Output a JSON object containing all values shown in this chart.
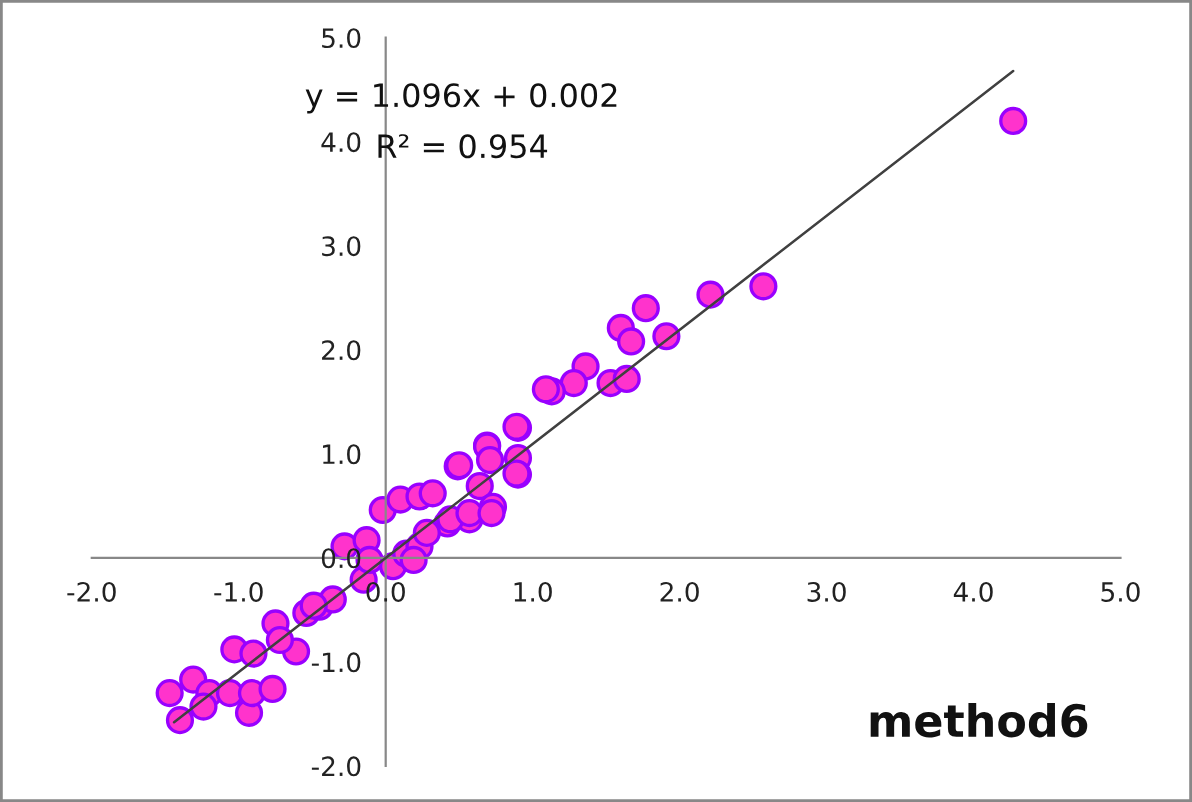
{
  "chart_data": {
    "type": "scatter",
    "xlim": [
      -2,
      5
    ],
    "ylim": [
      -2,
      5
    ],
    "xticks": [
      {
        "value": -2,
        "label": "-2.0"
      },
      {
        "value": -1,
        "label": "-1.0"
      },
      {
        "value": 0,
        "label": "0.0"
      },
      {
        "value": 1,
        "label": "1.0"
      },
      {
        "value": 2,
        "label": "2.0"
      },
      {
        "value": 3,
        "label": "3.0"
      },
      {
        "value": 4,
        "label": "4.0"
      },
      {
        "value": 5,
        "label": "5.0"
      }
    ],
    "yticks": [
      {
        "value": -2,
        "label": "-2.0"
      },
      {
        "value": -1,
        "label": "-1.0"
      },
      {
        "value": 0,
        "label": "0.0"
      },
      {
        "value": 1,
        "label": "1.0"
      },
      {
        "value": 2,
        "label": "2.0"
      },
      {
        "value": 3,
        "label": "3.0"
      },
      {
        "value": 4,
        "label": "4.0"
      },
      {
        "value": 5,
        "label": "5.0"
      }
    ],
    "grid": false,
    "legend": false,
    "marker": "circle",
    "annotations": [
      "y = 1.096x + 0.002",
      "R² = 0.954",
      "method6"
    ],
    "series": [
      {
        "color": "#ff33cc",
        "x": [
          2.57,
          2.21,
          1.77,
          1.6,
          1.67,
          1.91,
          1.36,
          1.28,
          1.13,
          1.53,
          1.64,
          0.9,
          0.49,
          0.69,
          0.9,
          0.9,
          0.64,
          0.57,
          0.42,
          -1.4,
          -1.47,
          -1.31,
          -1.2,
          -1.24,
          -1.06,
          -0.93,
          -0.91,
          -0.77,
          -1.03,
          -0.9,
          -0.75,
          -0.61,
          -0.72,
          -0.54,
          -0.45,
          -0.36,
          -0.49,
          -0.15,
          -0.28,
          -0.13,
          -0.11,
          0.05,
          0.14,
          0.23,
          0.28,
          0.19,
          -0.02,
          0.1,
          0.23,
          0.32,
          0.44,
          0.57,
          0.73,
          0.72,
          0.5,
          0.69,
          0.89,
          0.89,
          0.71,
          1.09,
          4.27
        ],
        "values": [
          2.61,
          2.53,
          2.4,
          2.21,
          2.08,
          2.13,
          1.84,
          1.68,
          1.6,
          1.68,
          1.72,
          1.25,
          0.88,
          1.08,
          0.96,
          0.8,
          0.69,
          0.37,
          0.33,
          -1.56,
          -1.3,
          -1.17,
          -1.3,
          -1.43,
          -1.3,
          -1.49,
          -1.3,
          -1.26,
          -0.88,
          -0.92,
          -0.63,
          -0.9,
          -0.79,
          -0.53,
          -0.47,
          -0.4,
          -0.46,
          -0.21,
          0.11,
          0.17,
          -0.02,
          -0.08,
          0.04,
          0.11,
          0.24,
          -0.02,
          0.46,
          0.56,
          0.59,
          0.62,
          0.37,
          0.43,
          0.49,
          0.43,
          0.89,
          1.07,
          1.26,
          0.81,
          0.94,
          1.62,
          4.2
        ]
      },
      {
        "type": "line",
        "color": "#404040",
        "marker": "none",
        "x": [
          -1.44,
          4.27
        ],
        "values": [
          -1.58,
          4.68
        ]
      }
    ]
  }
}
